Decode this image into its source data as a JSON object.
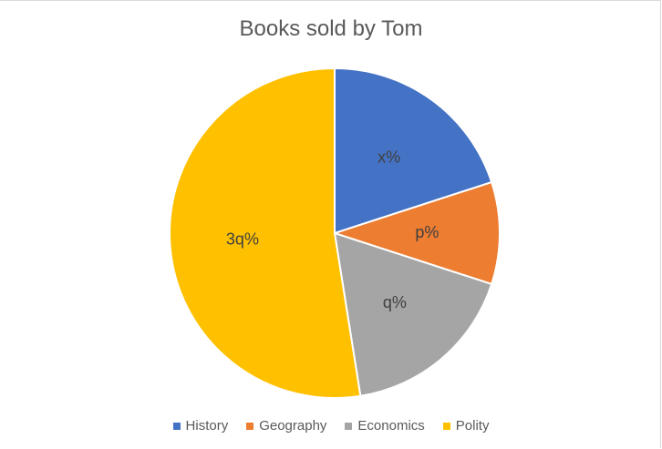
{
  "chart_data": {
    "type": "pie",
    "title": "Books sold by Tom",
    "legend_position": "bottom",
    "slices": [
      {
        "name": "History",
        "label": "x%",
        "value": 20,
        "color": "#4472C4"
      },
      {
        "name": "Geography",
        "label": "p%",
        "value": 10,
        "color": "#ED7D31"
      },
      {
        "name": "Economics",
        "label": "q%",
        "value": 17.5,
        "color": "#A5A5A5"
      },
      {
        "name": "Polity",
        "label": "3q%",
        "value": 52.5,
        "color": "#FFC000"
      }
    ]
  }
}
